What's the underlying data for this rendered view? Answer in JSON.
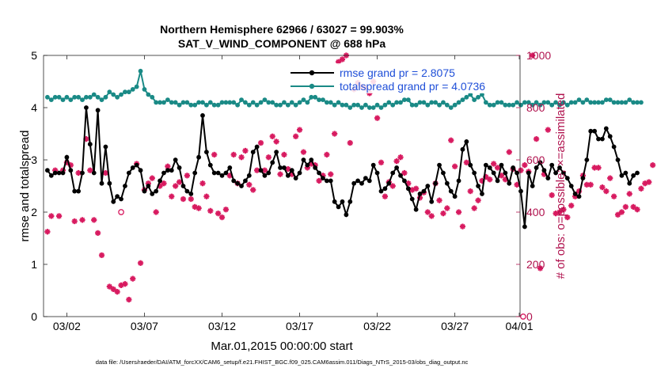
{
  "chart_data": {
    "type": "line",
    "title_line1": "Northern Hemisphere 62966 / 63027 = 99.903%",
    "title_line2": "SAT_V_WIND_COMPONENT @ 688 hPa",
    "xlabel": "Mar.01,2015 00:00:00 start",
    "ylabel_left": "rmse and totalspread",
    "ylabel_right": "# of obs: o=possible; ×=assimilated",
    "footer": "data file: /Users/raeder/DAI/ATM_forcXX/CAM6_setup/f.e21.FHIST_BGC.f09_025.CAM6assim.011/Diags_NTrS_2015-03/obs_diag_output.nc",
    "xlim": [
      0.5,
      31.2
    ],
    "ylim_left": [
      0,
      5
    ],
    "ylim_right": [
      0,
      1000
    ],
    "x_ticks": [
      {
        "v": 2,
        "label": "03/02"
      },
      {
        "v": 7,
        "label": "03/07"
      },
      {
        "v": 12,
        "label": "03/12"
      },
      {
        "v": 17,
        "label": "03/17"
      },
      {
        "v": 22,
        "label": "03/22"
      },
      {
        "v": 27,
        "label": "03/27"
      },
      {
        "v": 31.75,
        "label": "04/01"
      }
    ],
    "y_left_ticks": [
      "0",
      "1",
      "2",
      "3",
      "4",
      "5"
    ],
    "y_right_ticks": [
      "0",
      "200",
      "400",
      "600",
      "800",
      "1000"
    ],
    "legend": [
      {
        "label": "rmse grand pr = 2.8075",
        "color": "#000000"
      },
      {
        "label": "totalspread grand pr = 4.0736",
        "color": "#1a8a86"
      }
    ],
    "colors": {
      "rmse": "#000000",
      "spread": "#1a8a86",
      "obs": "#d81b60",
      "legend_text": "#1f4fd8",
      "right_axis": "#b0124e"
    },
    "time_step": 0.25,
    "time_start": 0.75,
    "rmse": [
      2.8,
      2.7,
      2.75,
      2.75,
      2.75,
      3.05,
      2.8,
      2.4,
      2.4,
      2.75,
      4.0,
      3.3,
      2.75,
      3.95,
      2.55,
      3.25,
      2.55,
      2.2,
      2.3,
      2.25,
      2.5,
      2.75,
      2.85,
      2.9,
      2.8,
      2.4,
      2.5,
      2.35,
      2.4,
      2.6,
      2.75,
      2.8,
      2.8,
      3.0,
      2.85,
      2.5,
      2.4,
      2.35,
      2.75,
      3.05,
      3.85,
      3.15,
      2.9,
      2.75,
      2.75,
      2.7,
      2.75,
      2.85,
      2.6,
      2.55,
      2.5,
      2.6,
      2.7,
      3.15,
      3.25,
      2.8,
      2.7,
      2.75,
      2.95,
      3.15,
      2.85,
      2.85,
      2.7,
      2.8,
      2.65,
      2.75,
      3.0,
      2.9,
      3.0,
      2.85,
      2.75,
      2.65,
      2.6,
      2.6,
      2.2,
      2.1,
      2.2,
      1.95,
      2.2,
      2.55,
      2.6,
      2.55,
      2.65,
      2.6,
      2.9,
      2.75,
      2.4,
      2.45,
      2.55,
      2.75,
      2.85,
      2.7,
      2.6,
      2.45,
      2.25,
      2.05,
      2.35,
      2.4,
      2.5,
      2.2,
      2.55,
      2.9,
      2.75,
      2.55,
      2.4,
      2.3,
      2.6,
      3.2,
      3.35,
      2.9,
      2.75,
      2.5,
      2.35,
      2.9,
      2.85,
      2.75,
      2.6,
      2.9,
      2.75,
      2.55,
      2.85,
      2.75,
      2.4,
      1.72,
      2.75,
      2.5,
      2.85,
      2.95,
      2.8,
      2.65,
      2.9,
      2.75,
      2.85,
      2.75,
      2.65,
      2.5,
      2.35,
      2.3,
      2.65,
      3.0,
      3.55,
      3.55,
      3.4,
      3.4,
      3.6,
      3.45,
      3.25,
      3.0,
      2.7,
      2.75,
      2.55,
      2.7,
      2.75
    ],
    "spread": [
      4.2,
      4.15,
      4.2,
      4.2,
      4.15,
      4.2,
      4.15,
      4.2,
      4.2,
      4.15,
      4.2,
      4.2,
      4.25,
      4.2,
      4.15,
      4.2,
      4.3,
      4.25,
      4.2,
      4.25,
      4.3,
      4.3,
      4.35,
      4.4,
      4.7,
      4.35,
      4.25,
      4.2,
      4.1,
      4.1,
      4.1,
      4.15,
      4.1,
      4.1,
      4.05,
      4.1,
      4.1,
      4.05,
      4.05,
      4.1,
      4.1,
      4.05,
      4.1,
      4.05,
      4.05,
      4.1,
      4.1,
      4.1,
      4.1,
      4.05,
      4.15,
      4.1,
      4.05,
      4.1,
      4.05,
      4.1,
      4.15,
      4.1,
      4.1,
      4.05,
      4.05,
      4.1,
      4.05,
      4.1,
      4.05,
      4.1,
      4.15,
      4.1,
      4.2,
      4.2,
      4.15,
      4.15,
      4.1,
      4.1,
      4.05,
      4.1,
      4.05,
      4.05,
      4.0,
      4.05,
      4.05,
      4.0,
      4.05,
      4.0,
      4.0,
      4.05,
      4.0,
      4.05,
      4.1,
      4.05,
      4.1,
      4.1,
      4.15,
      4.15,
      4.05,
      4.05,
      4.1,
      4.1,
      4.05,
      4.1,
      4.1,
      4.05,
      4.1,
      4.05,
      4.0,
      4.05,
      4.1,
      4.15,
      4.2,
      4.25,
      4.15,
      4.2,
      4.25,
      4.1,
      4.05,
      4.05,
      4.1,
      4.1,
      4.05,
      4.05,
      4.05,
      4.1,
      4.05,
      4.1,
      4.1,
      4.05,
      4.1,
      4.05,
      4.1,
      4.1,
      4.05,
      4.1,
      4.05,
      4.1,
      4.05,
      4.1,
      4.1,
      4.15,
      4.1,
      4.15,
      4.1,
      4.1,
      4.1,
      4.1,
      4.15,
      4.15,
      4.1,
      4.1,
      4.1,
      4.1,
      4.15,
      4.1,
      4.1,
      4.1
    ],
    "obs_assimilated": [
      325,
      385,
      560,
      385,
      560,
      590,
      580,
      365,
      550,
      370,
      680,
      560,
      370,
      320,
      235,
      550,
      115,
      105,
      95,
      120,
      125,
      65,
      145,
      585,
      205,
      485,
      510,
      530,
      400,
      500,
      510,
      575,
      460,
      500,
      515,
      450,
      540,
      450,
      420,
      415,
      510,
      460,
      405,
      620,
      395,
      380,
      410,
      540,
      620,
      510,
      610,
      635,
      505,
      485,
      560,
      665,
      560,
      610,
      690,
      670,
      545,
      620,
      565,
      545,
      690,
      715,
      630,
      570,
      585,
      580,
      520,
      540,
      620,
      545,
      700,
      975,
      985,
      1000,
      665,
      870,
      895,
      880,
      875,
      855,
      900,
      760,
      590,
      460,
      515,
      500,
      595,
      610,
      550,
      510,
      485,
      490,
      455,
      475,
      400,
      385,
      510,
      445,
      395,
      415,
      675,
      575,
      400,
      345,
      590,
      480,
      415,
      445,
      520,
      535,
      525,
      585,
      570,
      540,
      525,
      630,
      565,
      505,
      560,
      580,
      555,
      1000,
      680,
      185,
      545,
      715,
      465,
      395,
      400,
      410,
      380,
      425,
      460,
      480,
      540,
      505,
      505,
      570,
      570,
      495,
      480,
      530,
      460,
      390,
      400,
      420,
      470,
      420,
      410,
      490,
      510,
      515,
      580
    ],
    "obs_possible": [
      {
        "t": 5.5,
        "v": 400,
        "missing_x": true
      },
      {
        "t": 31.4,
        "v": 0,
        "possible_only": true
      }
    ]
  }
}
